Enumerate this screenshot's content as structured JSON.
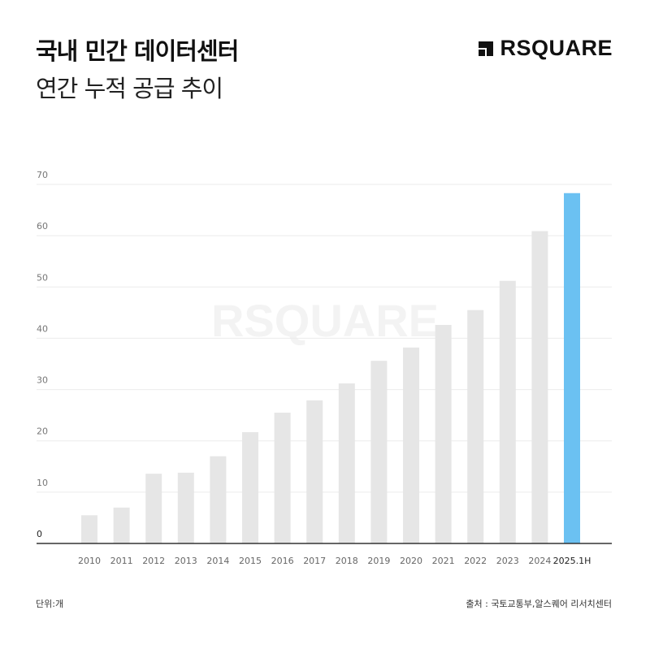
{
  "header": {
    "title": "국내 민간 데이터센터",
    "subtitle": "연간 누적 공급 추이",
    "logo_text": "RSQUARE"
  },
  "footer": {
    "unit": "단위:개",
    "source": "출처 : 국토교통부,알스퀘어 리서치센터"
  },
  "colors": {
    "bar": "#e6e6e6",
    "highlight_bar": "#6bc1f2",
    "gridline": "#ebebeb",
    "axis": "#333333"
  },
  "chart_data": {
    "type": "bar",
    "title": "",
    "xlabel": "",
    "ylabel": "",
    "ylim": [
      0,
      70
    ],
    "yticks": [
      0,
      10,
      20,
      30,
      40,
      50,
      60,
      70
    ],
    "grid": true,
    "categories": [
      "2010",
      "2011",
      "2012",
      "2013",
      "2014",
      "2015",
      "2016",
      "2017",
      "2018",
      "2019",
      "2020",
      "2021",
      "2022",
      "2023",
      "2024",
      "2025.1H"
    ],
    "values": [
      5.5,
      7,
      13.6,
      13.8,
      17,
      21.7,
      25.5,
      27.9,
      31.2,
      35.6,
      38.2,
      42.6,
      45.5,
      51.2,
      60.9,
      68.3
    ],
    "highlight": "2025.1H"
  }
}
